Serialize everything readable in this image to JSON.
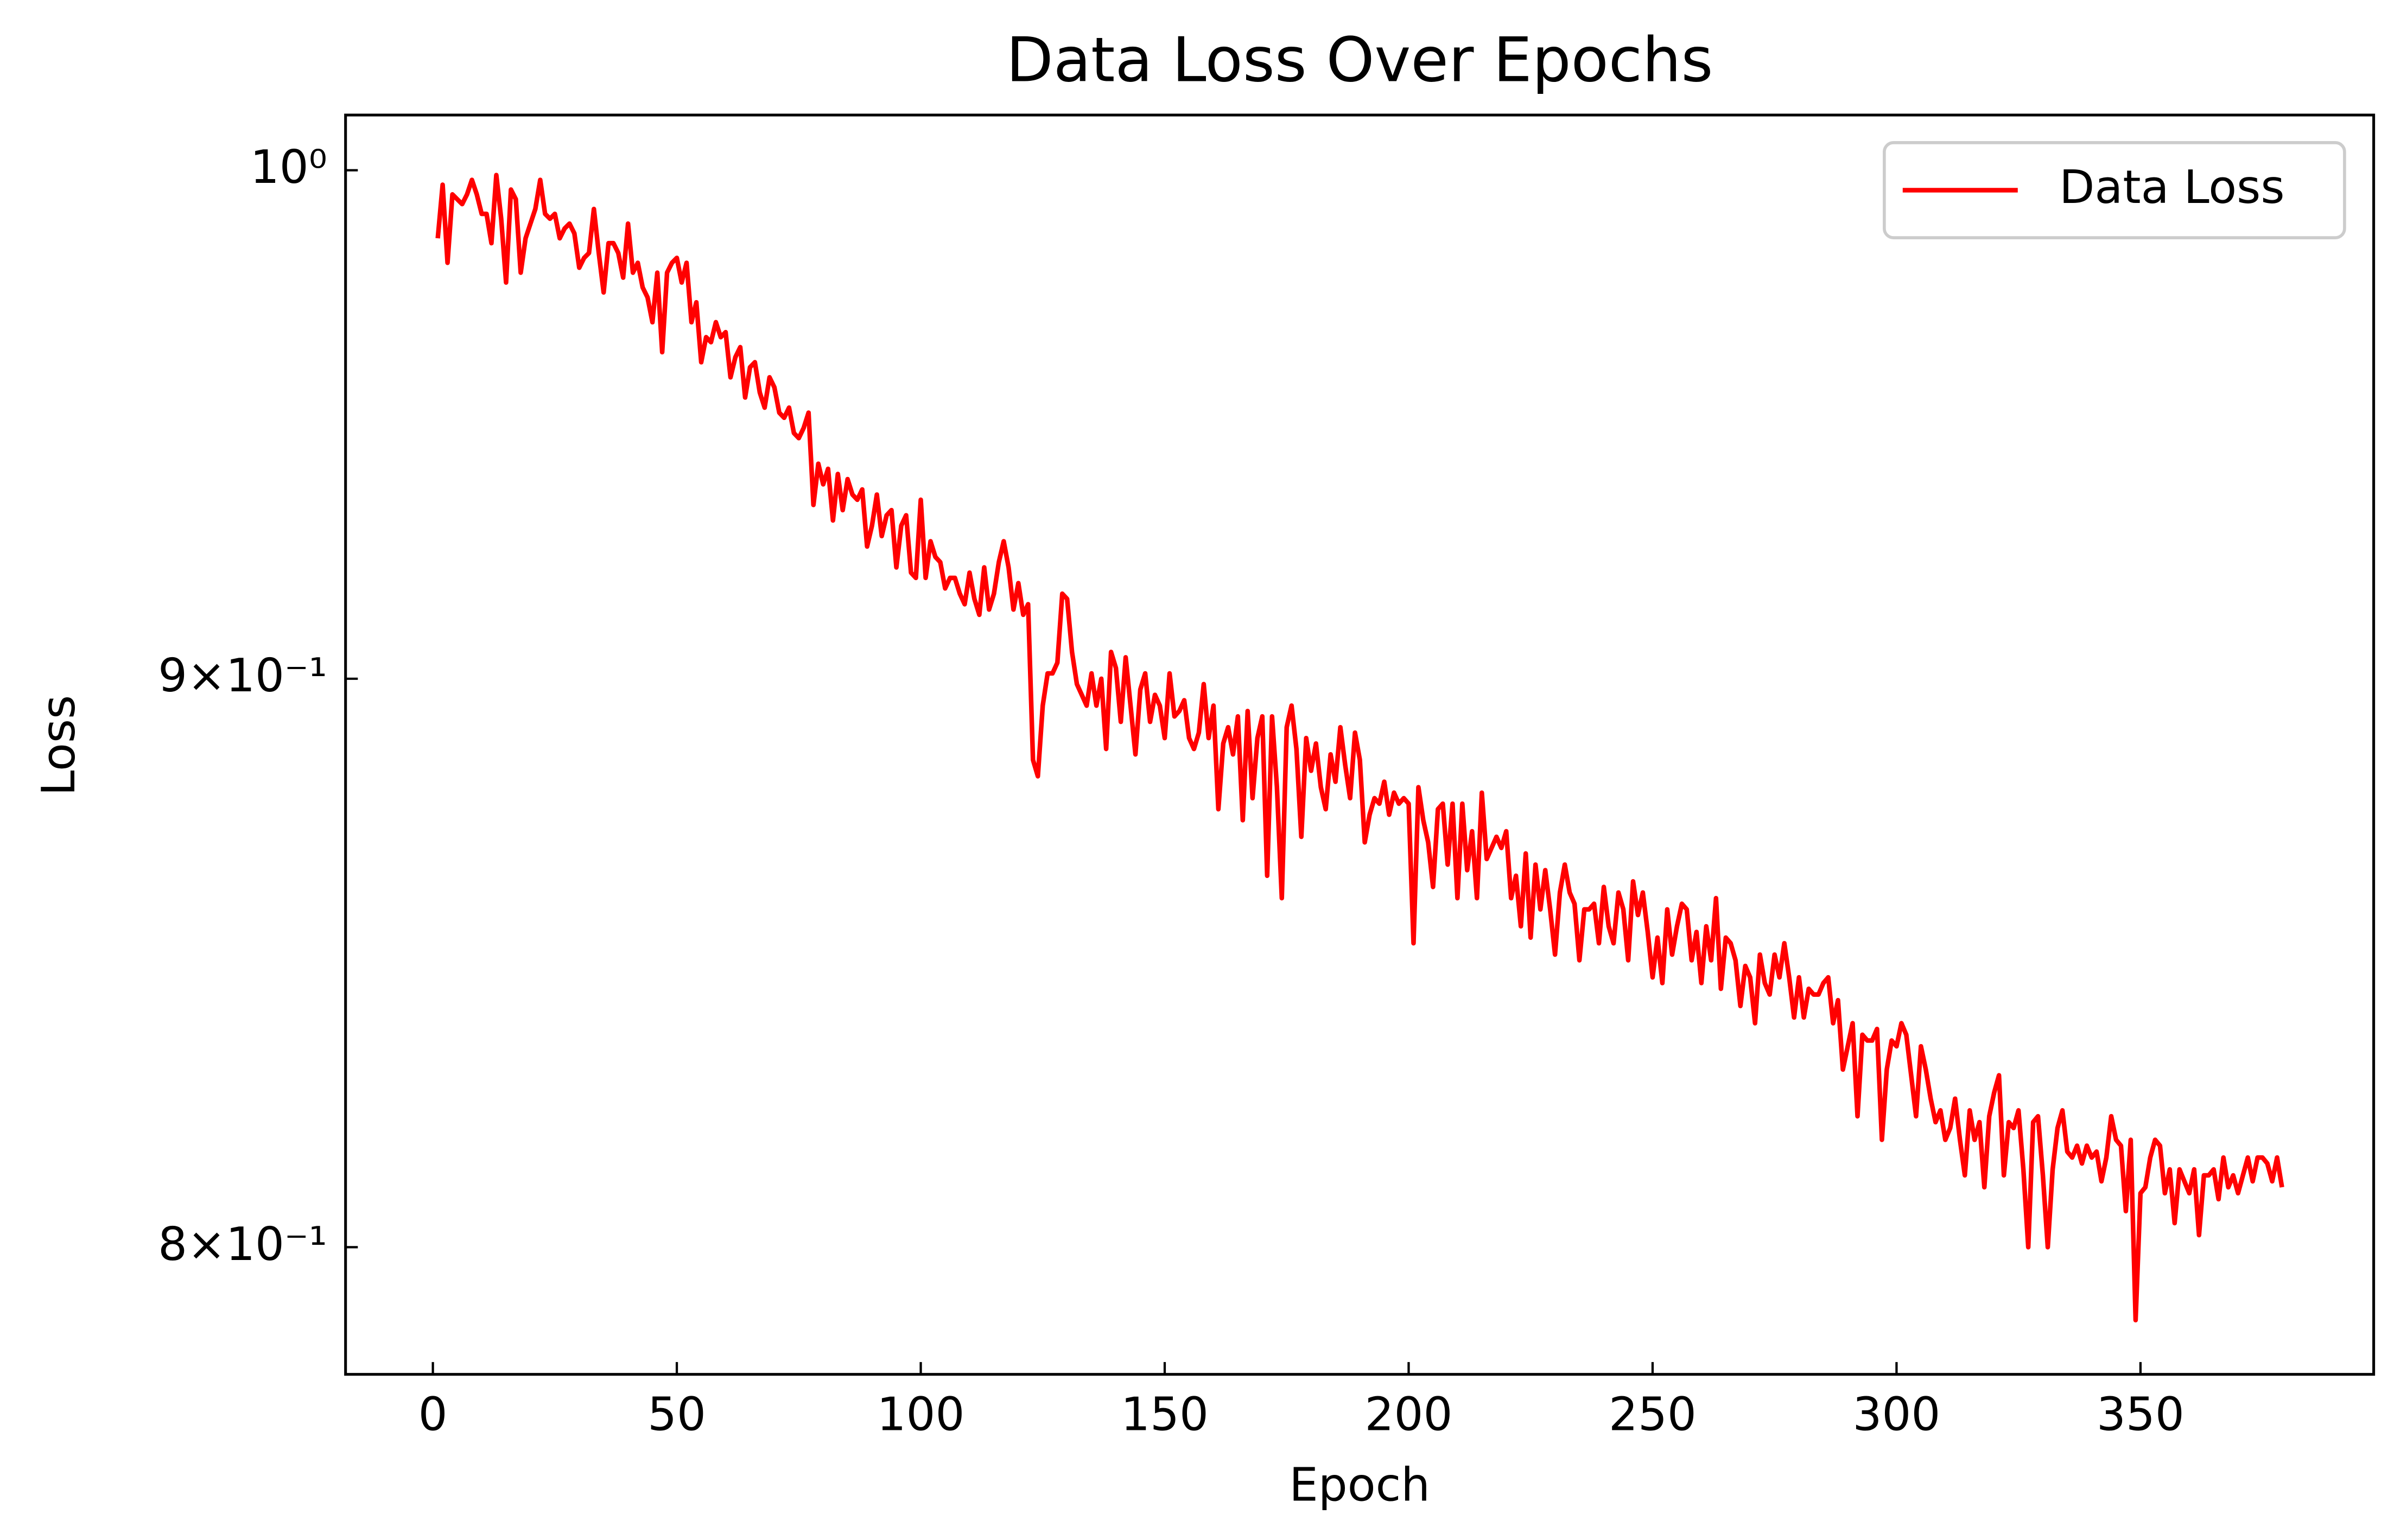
{
  "chart_data": {
    "type": "line",
    "title": "Data Loss Over Epochs",
    "xlabel": "Epoch",
    "ylabel": "Loss",
    "yscale": "log",
    "legend": "upper right",
    "xlim": [
      -17.9,
      397.8
    ],
    "ylim": [
      0.7792,
      1.0115
    ],
    "xticks": [
      0,
      50,
      100,
      150,
      200,
      250,
      300,
      350
    ],
    "yticks": [
      {
        "value": 1,
        "label": "10⁰"
      },
      {
        "value": 0.9,
        "label": "9×10⁻¹"
      },
      {
        "value": 0.8,
        "label": "8×10⁻¹"
      }
    ],
    "x": [
      1,
      2,
      3,
      4,
      5,
      6,
      7,
      8,
      9,
      10,
      11,
      12,
      13,
      14,
      15,
      16,
      17,
      18,
      19,
      20,
      21,
      22,
      23,
      24,
      25,
      26,
      27,
      28,
      29,
      30,
      31,
      32,
      33,
      34,
      35,
      36,
      37,
      38,
      39,
      40,
      41,
      42,
      43,
      44,
      45,
      46,
      47,
      48,
      49,
      50,
      51,
      52,
      53,
      54,
      55,
      56,
      57,
      58,
      59,
      60,
      61,
      62,
      63,
      64,
      65,
      66,
      67,
      68,
      69,
      70,
      71,
      72,
      73,
      74,
      75,
      76,
      77,
      78,
      79,
      80,
      81,
      82,
      83,
      84,
      85,
      86,
      87,
      88,
      89,
      90,
      91,
      92,
      93,
      94,
      95,
      96,
      97,
      98,
      99,
      100,
      101,
      102,
      103,
      104,
      105,
      106,
      107,
      108,
      109,
      110,
      111,
      112,
      113,
      114,
      115,
      116,
      117,
      118,
      119,
      120,
      121,
      122,
      123,
      124,
      125,
      126,
      127,
      128,
      129,
      130,
      131,
      132,
      133,
      134,
      135,
      136,
      137,
      138,
      139,
      140,
      141,
      142,
      143,
      144,
      145,
      146,
      147,
      148,
      149,
      150,
      151,
      152,
      153,
      154,
      155,
      156,
      157,
      158,
      159,
      160,
      161,
      162,
      163,
      164,
      165,
      166,
      167,
      168,
      169,
      170,
      171,
      172,
      173,
      174,
      175,
      176,
      177,
      178,
      179,
      180,
      181,
      182,
      183,
      184,
      185,
      186,
      187,
      188,
      189,
      190,
      191,
      192,
      193,
      194,
      195,
      196,
      197,
      198,
      199,
      200,
      201,
      202,
      203,
      204,
      205,
      206,
      207,
      208,
      209,
      210,
      211,
      212,
      213,
      214,
      215,
      216,
      217,
      218,
      219,
      220,
      221,
      222,
      223,
      224,
      225,
      226,
      227,
      228,
      229,
      230,
      231,
      232,
      233,
      234,
      235,
      236,
      237,
      238,
      239,
      240,
      241,
      242,
      243,
      244,
      245,
      246,
      247,
      248,
      249,
      250,
      251,
      252,
      253,
      254,
      255,
      256,
      257,
      258,
      259,
      260,
      261,
      262,
      263,
      264,
      265,
      266,
      267,
      268,
      269,
      270,
      271,
      272,
      273,
      274,
      275,
      276,
      277,
      278,
      279,
      280,
      281,
      282,
      283,
      284,
      285,
      286,
      287,
      288,
      289,
      290,
      291,
      292,
      293,
      294,
      295,
      296,
      297,
      298,
      299,
      300,
      301,
      302,
      303,
      304,
      305,
      306,
      307,
      308,
      309,
      310,
      311,
      312,
      313,
      314,
      315,
      316,
      317,
      318,
      319,
      320,
      321,
      322,
      323,
      324,
      325,
      326,
      327,
      328,
      329,
      330,
      331,
      332,
      333,
      334,
      335,
      336,
      337,
      338,
      339,
      340,
      341,
      342,
      343,
      344,
      345,
      346,
      347,
      348,
      349,
      350,
      351,
      352,
      353,
      354,
      355,
      356,
      357,
      358,
      359,
      360,
      361,
      362,
      363,
      364,
      365,
      366,
      367,
      368,
      369,
      370,
      371,
      372,
      373,
      374,
      375,
      376,
      377,
      378,
      379
    ],
    "series": [
      {
        "name": "Data Loss",
        "color": "#ff0000",
        "values": [
          0.986,
          0.997,
          0.981,
          0.995,
          0.994,
          0.993,
          0.995,
          0.998,
          0.995,
          0.991,
          0.991,
          0.985,
          0.999,
          0.99,
          0.977,
          0.996,
          0.994,
          0.979,
          0.986,
          0.989,
          0.992,
          0.998,
          0.991,
          0.99,
          0.991,
          0.986,
          0.988,
          0.989,
          0.987,
          0.98,
          0.982,
          0.983,
          0.992,
          0.983,
          0.975,
          0.985,
          0.985,
          0.983,
          0.978,
          0.989,
          0.979,
          0.981,
          0.976,
          0.974,
          0.969,
          0.979,
          0.963,
          0.979,
          0.981,
          0.982,
          0.977,
          0.981,
          0.969,
          0.973,
          0.961,
          0.966,
          0.965,
          0.969,
          0.966,
          0.967,
          0.958,
          0.962,
          0.964,
          0.954,
          0.96,
          0.961,
          0.955,
          0.952,
          0.958,
          0.956,
          0.951,
          0.95,
          0.952,
          0.947,
          0.946,
          0.948,
          0.951,
          0.933,
          0.941,
          0.937,
          0.94,
          0.93,
          0.939,
          0.932,
          0.938,
          0.935,
          0.934,
          0.936,
          0.925,
          0.929,
          0.935,
          0.927,
          0.931,
          0.932,
          0.921,
          0.929,
          0.931,
          0.92,
          0.919,
          0.934,
          0.919,
          0.926,
          0.923,
          0.922,
          0.917,
          0.919,
          0.919,
          0.916,
          0.914,
          0.92,
          0.915,
          0.912,
          0.921,
          0.913,
          0.916,
          0.922,
          0.926,
          0.921,
          0.913,
          0.918,
          0.912,
          0.914,
          0.885,
          0.882,
          0.895,
          0.901,
          0.901,
          0.903,
          0.916,
          0.915,
          0.905,
          0.899,
          0.897,
          0.895,
          0.901,
          0.895,
          0.9,
          0.887,
          0.905,
          0.902,
          0.892,
          0.904,
          0.895,
          0.886,
          0.898,
          0.901,
          0.892,
          0.897,
          0.895,
          0.889,
          0.901,
          0.893,
          0.894,
          0.896,
          0.889,
          0.887,
          0.89,
          0.899,
          0.889,
          0.895,
          0.876,
          0.888,
          0.891,
          0.886,
          0.893,
          0.874,
          0.894,
          0.878,
          0.889,
          0.893,
          0.864,
          0.893,
          0.88,
          0.86,
          0.891,
          0.895,
          0.887,
          0.871,
          0.889,
          0.883,
          0.888,
          0.88,
          0.876,
          0.886,
          0.881,
          0.891,
          0.884,
          0.878,
          0.89,
          0.885,
          0.87,
          0.875,
          0.878,
          0.877,
          0.881,
          0.875,
          0.879,
          0.877,
          0.878,
          0.877,
          0.852,
          0.88,
          0.874,
          0.87,
          0.862,
          0.876,
          0.877,
          0.866,
          0.877,
          0.86,
          0.877,
          0.865,
          0.872,
          0.86,
          0.879,
          0.867,
          0.869,
          0.871,
          0.869,
          0.872,
          0.86,
          0.864,
          0.855,
          0.868,
          0.853,
          0.866,
          0.858,
          0.865,
          0.858,
          0.85,
          0.861,
          0.866,
          0.861,
          0.859,
          0.849,
          0.858,
          0.858,
          0.859,
          0.852,
          0.862,
          0.855,
          0.852,
          0.861,
          0.858,
          0.849,
          0.863,
          0.857,
          0.861,
          0.854,
          0.846,
          0.853,
          0.845,
          0.858,
          0.85,
          0.855,
          0.859,
          0.858,
          0.849,
          0.854,
          0.845,
          0.855,
          0.849,
          0.86,
          0.844,
          0.853,
          0.852,
          0.849,
          0.841,
          0.848,
          0.846,
          0.838,
          0.85,
          0.845,
          0.843,
          0.85,
          0.846,
          0.852,
          0.846,
          0.839,
          0.846,
          0.839,
          0.844,
          0.843,
          0.843,
          0.845,
          0.846,
          0.838,
          0.842,
          0.83,
          0.834,
          0.838,
          0.822,
          0.836,
          0.835,
          0.835,
          0.837,
          0.818,
          0.83,
          0.835,
          0.834,
          0.838,
          0.836,
          0.829,
          0.822,
          0.834,
          0.83,
          0.825,
          0.821,
          0.823,
          0.818,
          0.82,
          0.825,
          0.818,
          0.812,
          0.823,
          0.818,
          0.821,
          0.81,
          0.822,
          0.826,
          0.829,
          0.812,
          0.821,
          0.82,
          0.823,
          0.813,
          0.8,
          0.821,
          0.822,
          0.812,
          0.8,
          0.813,
          0.82,
          0.823,
          0.816,
          0.815,
          0.817,
          0.814,
          0.817,
          0.815,
          0.816,
          0.811,
          0.815,
          0.822,
          0.818,
          0.817,
          0.806,
          0.818,
          0.788,
          0.809,
          0.81,
          0.815,
          0.818,
          0.817,
          0.809,
          0.813,
          0.804,
          0.813,
          0.811,
          0.809,
          0.813,
          0.802,
          0.812,
          0.812,
          0.813,
          0.808,
          0.815,
          0.81,
          0.812,
          0.809,
          0.812,
          0.815,
          0.811,
          0.815,
          0.815,
          0.814,
          0.811,
          0.815,
          0.81
        ]
      }
    ]
  }
}
